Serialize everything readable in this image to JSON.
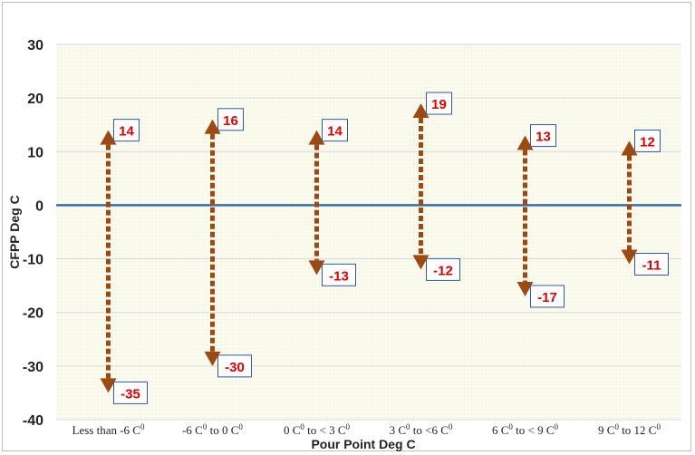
{
  "chart_data": {
    "type": "range",
    "title": "",
    "xlabel": "Pour Point Deg C",
    "ylabel": "CFPP Deg C",
    "ylim": [
      -40,
      30
    ],
    "yticks": [
      30,
      20,
      10,
      0,
      -10,
      -20,
      -30,
      -40
    ],
    "grid": true,
    "legend": "none",
    "zero_line": true,
    "categories": [
      {
        "label": "Less than -6 C",
        "sup": "0",
        "suffix": ""
      },
      {
        "label": "-6 C",
        "sup": "0",
        "suffix": " to 0 C",
        "sup2": "0"
      },
      {
        "label": "0 C",
        "sup": "0",
        "suffix": " to < 3 C",
        "sup2": "0"
      },
      {
        "label": "3 C",
        "sup": "0",
        "suffix": " to <6 C",
        "sup2": "0"
      },
      {
        "label": "6 C",
        "sup": "0",
        "suffix": " to < 9 C",
        "sup2": "0"
      },
      {
        "label": "9 C",
        "sup": "0",
        "suffix": " to 12 C",
        "sup2": "0"
      }
    ],
    "series": [
      {
        "max": [
          14,
          16,
          14,
          19,
          13,
          12
        ],
        "min": [
          -35,
          -30,
          -13,
          -12,
          -17,
          -11
        ]
      }
    ],
    "colors": {
      "arrow": "#9c4a12",
      "label_text": "#e00000",
      "label_border": "#2e5aa8",
      "zero_line": "#3b6ea5",
      "grid": "#d9d9d9",
      "plot_bg": "#fbfbef"
    }
  }
}
